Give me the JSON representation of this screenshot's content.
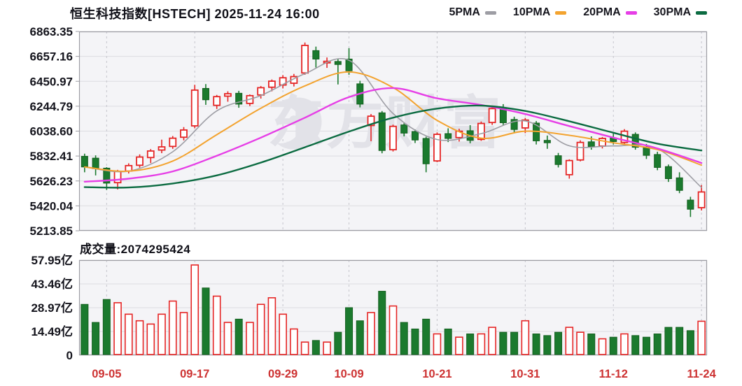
{
  "header": {
    "title": "恒生科技指数[HSTECH] 2025-11-24 16:00",
    "legend": [
      {
        "label": "5PMA",
        "color": "#9d9da4"
      },
      {
        "label": "10PMA",
        "color": "#f3a32f"
      },
      {
        "label": "20PMA",
        "color": "#e63ee6"
      },
      {
        "label": "30PMA",
        "color": "#0b6b41"
      }
    ]
  },
  "volume_header": {
    "label": "成交量",
    "separator": ":",
    "value": "2074295424"
  },
  "watermark_text": "东方财富",
  "colors": {
    "up": "#e52525",
    "down": "#1b7a2e",
    "down_stroke": "#14601f",
    "axis_text": "#14141c",
    "x_label": "#cd3232",
    "grid": "#dcdce1",
    "grid_dash": "#c5c5cc",
    "panel_border": "#9d9da4",
    "panel_bg": "#f4f4f7",
    "watermark": "#e2e2e8"
  },
  "chart_data": {
    "type": "candlestick+volume",
    "title": "恒生科技指数[HSTECH]",
    "timestamp": "2025-11-24 16:00",
    "price_axis": {
      "max": 6863.35,
      "min": 5213.85,
      "tick_labels": [
        "6863.35",
        "6657.16",
        "6450.97",
        "6244.79",
        "6038.60",
        "5832.41",
        "5626.23",
        "5420.04",
        "5213.85"
      ]
    },
    "volume_axis": {
      "max": 57.95,
      "unit": "亿",
      "tick_labels": [
        "57.95亿",
        "43.46亿",
        "28.97亿",
        "14.49亿",
        "0"
      ]
    },
    "x_ticks": [
      {
        "label": "09-05",
        "index": 2
      },
      {
        "label": "09-17",
        "index": 10
      },
      {
        "label": "09-29",
        "index": 18
      },
      {
        "label": "10-09",
        "index": 24
      },
      {
        "label": "10-21",
        "index": 32
      },
      {
        "label": "10-31",
        "index": 40
      },
      {
        "label": "11-12",
        "index": 48
      },
      {
        "label": "11-24",
        "index": 56
      }
    ],
    "candles": [
      [
        "09-03",
        5830,
        5852,
        5698,
        5742,
        31
      ],
      [
        "09-04",
        5815,
        5838,
        5672,
        5728,
        20
      ],
      [
        "09-05",
        5732,
        5740,
        5552,
        5608,
        34
      ],
      [
        "09-08",
        5612,
        5718,
        5556,
        5706,
        32
      ],
      [
        "09-09",
        5708,
        5772,
        5688,
        5753,
        25
      ],
      [
        "09-10",
        5756,
        5846,
        5736,
        5824,
        21
      ],
      [
        "09-11",
        5820,
        5890,
        5774,
        5874,
        19
      ],
      [
        "09-12",
        5882,
        5968,
        5856,
        5908,
        25
      ],
      [
        "09-15",
        5912,
        5998,
        5892,
        5980,
        33
      ],
      [
        "09-16",
        5988,
        6072,
        5962,
        6048,
        26
      ],
      [
        "09-17",
        6082,
        6422,
        6062,
        6378,
        55
      ],
      [
        "09-18",
        6392,
        6428,
        6256,
        6298,
        41
      ],
      [
        "09-19",
        6252,
        6338,
        6222,
        6324,
        36
      ],
      [
        "09-22",
        6328,
        6368,
        6282,
        6348,
        20
      ],
      [
        "09-23",
        6352,
        6372,
        6232,
        6262,
        22
      ],
      [
        "09-24",
        6268,
        6342,
        6246,
        6332,
        20
      ],
      [
        "09-25",
        6338,
        6412,
        6308,
        6398,
        31
      ],
      [
        "09-26",
        6402,
        6466,
        6368,
        6452,
        35
      ],
      [
        "09-29",
        6420,
        6502,
        6392,
        6480,
        25
      ],
      [
        "09-30",
        6435,
        6512,
        6408,
        6490,
        16
      ],
      [
        "10-02",
        6520,
        6772,
        6505,
        6748,
        8
      ],
      [
        "10-03",
        6705,
        6738,
        6565,
        6635,
        9
      ],
      [
        "10-06",
        6608,
        6648,
        6562,
        6612,
        8
      ],
      [
        "10-08",
        6615,
        6640,
        6425,
        6590,
        14
      ],
      [
        "10-09",
        6635,
        6725,
        6505,
        6538,
        29
      ],
      [
        "10-10",
        6430,
        6455,
        6235,
        6262,
        21
      ],
      [
        "10-13",
        6085,
        6180,
        5955,
        6162,
        26
      ],
      [
        "10-14",
        6190,
        6205,
        5855,
        5878,
        39
      ],
      [
        "10-15",
        5885,
        6092,
        5870,
        6078,
        30
      ],
      [
        "10-16",
        6090,
        6105,
        5995,
        6022,
        20
      ],
      [
        "10-17",
        6035,
        6052,
        5940,
        5965,
        16
      ],
      [
        "10-20",
        5978,
        5992,
        5698,
        5768,
        22
      ],
      [
        "10-21",
        5792,
        6028,
        5782,
        6012,
        13
      ],
      [
        "10-22",
        6018,
        6062,
        5948,
        5978,
        16
      ],
      [
        "10-23",
        5985,
        6058,
        5952,
        6038,
        11
      ],
      [
        "10-24",
        6042,
        6088,
        5938,
        5962,
        13
      ],
      [
        "10-27",
        5970,
        6118,
        5958,
        6102,
        13
      ],
      [
        "10-28",
        6110,
        6245,
        6090,
        6225,
        17
      ],
      [
        "10-29",
        6228,
        6262,
        6088,
        6108,
        14
      ],
      [
        "10-30",
        6135,
        6158,
        6030,
        6052,
        14
      ],
      [
        "10-31",
        6065,
        6148,
        6022,
        6130,
        21
      ],
      [
        "11-03",
        6105,
        6122,
        5928,
        5958,
        13
      ],
      [
        "11-04",
        5962,
        6002,
        5892,
        5942,
        12
      ],
      [
        "11-05",
        5835,
        5858,
        5738,
        5762,
        14
      ],
      [
        "11-06",
        5678,
        5805,
        5645,
        5795,
        17
      ],
      [
        "11-07",
        5800,
        5962,
        5788,
        5945,
        14
      ],
      [
        "11-10",
        5950,
        5995,
        5885,
        5910,
        13
      ],
      [
        "11-11",
        5915,
        5990,
        5895,
        5978,
        10
      ],
      [
        "11-12",
        5982,
        6018,
        5928,
        5952,
        11
      ],
      [
        "11-13",
        5945,
        6055,
        5925,
        6038,
        13
      ],
      [
        "11-14",
        6012,
        6028,
        5885,
        5905,
        12
      ],
      [
        "11-17",
        5908,
        5932,
        5808,
        5838,
        11
      ],
      [
        "11-18",
        5845,
        5868,
        5715,
        5738,
        13
      ],
      [
        "11-19",
        5745,
        5762,
        5618,
        5645,
        17
      ],
      [
        "11-20",
        5652,
        5698,
        5525,
        5548,
        17
      ],
      [
        "11-21",
        5468,
        5495,
        5328,
        5392,
        15
      ],
      [
        "11-24",
        5405,
        5592,
        5382,
        5535,
        20.7
      ]
    ],
    "ma_sample_step": 4,
    "ma_series": [
      {
        "name": "5PMA",
        "color": "#9d9da4",
        "width": 1.6,
        "values": [
          5742,
          5707,
          5868,
          6206,
          6333,
          6514,
          6625,
          6184,
          5969,
          6018,
          6123,
          5917,
          5916,
          5894,
          5572
        ]
      },
      {
        "name": "10PMA",
        "color": "#f3a32f",
        "width": 2,
        "values": [
          5742,
          5707,
          5791,
          6009,
          6228,
          6413,
          6528,
          6399,
          6128,
          5980,
          6038,
          6004,
          5942,
          5886,
          5757
        ]
      },
      {
        "name": "20PMA",
        "color": "#e63ee6",
        "width": 2.4,
        "values": [
          5620,
          5645,
          5705,
          5835,
          5985,
          6150,
          6320,
          6395,
          6310,
          6255,
          6180,
          6080,
          5985,
          5895,
          5775
        ]
      },
      {
        "name": "30PMA",
        "color": "#0b6b41",
        "width": 2.4,
        "values": [
          5575,
          5572,
          5605,
          5672,
          5778,
          5905,
          6035,
          6150,
          6225,
          6250,
          6205,
          6120,
          6025,
          5935,
          5878
        ]
      }
    ]
  }
}
